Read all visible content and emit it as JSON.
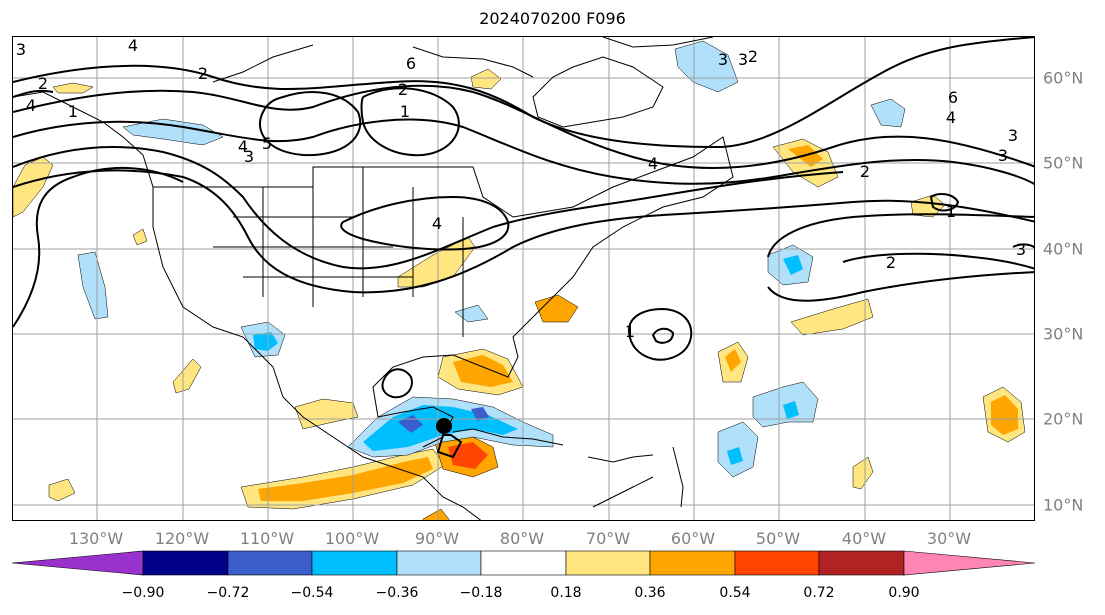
{
  "title": "2024070200 F096",
  "lat_labels": [
    "60°N",
    "50°N",
    "40°N",
    "30°N",
    "20°N",
    "10°N"
  ],
  "lon_labels": [
    "130°W",
    "120°W",
    "110°W",
    "100°W",
    "90°W",
    "80°W",
    "70°W",
    "60°W",
    "50°W",
    "40°W",
    "30°W"
  ],
  "colorbar": {
    "ticks": [
      "−0.90",
      "−0.72",
      "−0.54",
      "−0.36",
      "−0.18",
      "0.18",
      "0.36",
      "0.54",
      "0.72",
      "0.90"
    ],
    "colors": [
      "#9932cc",
      "#00008b",
      "#3a5fcd",
      "#00bfff",
      "#b0e0fa",
      "#ffffff",
      "#ffe680",
      "#ffa500",
      "#ff4500",
      "#b22222",
      "#ff85b5"
    ]
  },
  "contour_labels": [
    {
      "text": "4",
      "id": "c4a"
    },
    {
      "text": "3",
      "id": "c3a"
    },
    {
      "text": "4",
      "id": "c4b"
    },
    {
      "text": "2",
      "id": "c2a"
    },
    {
      "text": "6",
      "id": "c6a"
    },
    {
      "text": "2",
      "id": "c2b"
    },
    {
      "text": "1",
      "id": "c1a"
    },
    {
      "text": "4",
      "id": "c4c"
    },
    {
      "text": "5",
      "id": "c5a"
    },
    {
      "text": "3",
      "id": "c3b"
    },
    {
      "text": "4",
      "id": "c4d"
    },
    {
      "text": "6",
      "id": "c6b"
    },
    {
      "text": "4",
      "id": "c4e"
    },
    {
      "text": "3",
      "id": "c3c"
    },
    {
      "text": "3",
      "id": "c3d"
    },
    {
      "text": "2",
      "id": "c2c"
    },
    {
      "text": "1",
      "id": "c1b"
    },
    {
      "text": "2",
      "id": "c2d"
    },
    {
      "text": "3",
      "id": "c3e"
    },
    {
      "text": "1",
      "id": "c1c"
    },
    {
      "text": "3",
      "id": "c3f"
    },
    {
      "text": "2",
      "id": "c2e"
    },
    {
      "text": "3",
      "id": "c3g"
    },
    {
      "text": "2",
      "id": "c2f"
    },
    {
      "text": "4",
      "id": "c4f"
    },
    {
      "text": "1",
      "id": "c1d"
    }
  ]
}
